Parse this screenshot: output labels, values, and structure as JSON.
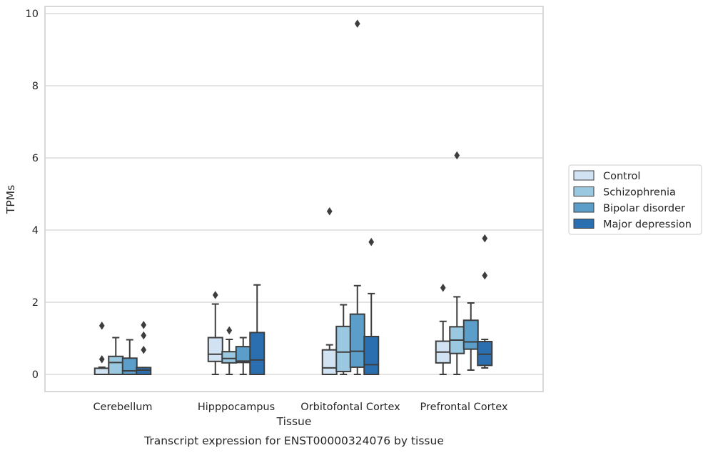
{
  "chart_data": {
    "type": "box",
    "title": "",
    "caption": "Transcript expression for ENST00000324076 by tissue",
    "xlabel": "Tissue",
    "ylabel": "TPMs",
    "ylim": [
      -0.45,
      10.2
    ],
    "yticks": [
      "0",
      "2",
      "4",
      "6",
      "8",
      "10"
    ],
    "grid": "horizontal",
    "legend_position": "right",
    "categories": [
      "Cerebellum",
      "Hipppocampus",
      "Orbitofontal Cortex",
      "Prefrontal Cortex"
    ],
    "series": [
      {
        "name": "Control",
        "color": "#d1e2f2",
        "boxes": [
          {
            "whislo": 0.0,
            "q1": 0.0,
            "med": 0.0,
            "q3": 0.17,
            "whishi": 0.2,
            "fliers": [
              0.42,
              1.35
            ]
          },
          {
            "whislo": 0.0,
            "q1": 0.36,
            "med": 0.56,
            "q3": 1.02,
            "whishi": 1.95,
            "fliers": [
              2.2
            ]
          },
          {
            "whislo": 0.0,
            "q1": 0.0,
            "med": 0.18,
            "q3": 0.68,
            "whishi": 0.82,
            "fliers": [
              4.52
            ]
          },
          {
            "whislo": 0.0,
            "q1": 0.32,
            "med": 0.62,
            "q3": 0.92,
            "whishi": 1.47,
            "fliers": [
              2.4
            ]
          }
        ]
      },
      {
        "name": "Schizophrenia",
        "color": "#9ac8e0",
        "boxes": [
          {
            "whislo": 0.0,
            "q1": 0.0,
            "med": 0.33,
            "q3": 0.5,
            "whishi": 1.02,
            "fliers": []
          },
          {
            "whislo": 0.0,
            "q1": 0.32,
            "med": 0.44,
            "q3": 0.63,
            "whishi": 0.97,
            "fliers": [
              1.22
            ]
          },
          {
            "whislo": 0.0,
            "q1": 0.08,
            "med": 0.62,
            "q3": 1.33,
            "whishi": 1.93,
            "fliers": []
          },
          {
            "whislo": 0.0,
            "q1": 0.58,
            "med": 0.95,
            "q3": 1.32,
            "whishi": 2.15,
            "fliers": [
              6.07
            ]
          }
        ]
      },
      {
        "name": "Bipolar disorder",
        "color": "#5a9ec9",
        "boxes": [
          {
            "whislo": 0.0,
            "q1": 0.0,
            "med": 0.1,
            "q3": 0.45,
            "whishi": 0.96,
            "fliers": []
          },
          {
            "whislo": 0.0,
            "q1": 0.33,
            "med": 0.37,
            "q3": 0.77,
            "whishi": 1.02,
            "fliers": []
          },
          {
            "whislo": 0.0,
            "q1": 0.2,
            "med": 0.64,
            "q3": 1.67,
            "whishi": 2.46,
            "fliers": [
              9.72
            ]
          },
          {
            "whislo": 0.12,
            "q1": 0.7,
            "med": 0.9,
            "q3": 1.5,
            "whishi": 1.98,
            "fliers": []
          }
        ]
      },
      {
        "name": "Major depression",
        "color": "#2c6fb0",
        "boxes": [
          {
            "whislo": 0.0,
            "q1": 0.0,
            "med": 0.12,
            "q3": 0.19,
            "whishi": 0.19,
            "fliers": [
              0.68,
              1.08,
              1.37
            ]
          },
          {
            "whislo": 0.0,
            "q1": 0.0,
            "med": 0.4,
            "q3": 1.16,
            "whishi": 2.48,
            "fliers": []
          },
          {
            "whislo": 0.0,
            "q1": 0.0,
            "med": 0.27,
            "q3": 1.05,
            "whishi": 2.24,
            "fliers": [
              3.67
            ]
          },
          {
            "whislo": 0.18,
            "q1": 0.25,
            "med": 0.56,
            "q3": 0.91,
            "whishi": 0.97,
            "fliers": [
              2.74,
              3.77
            ]
          }
        ]
      }
    ]
  }
}
